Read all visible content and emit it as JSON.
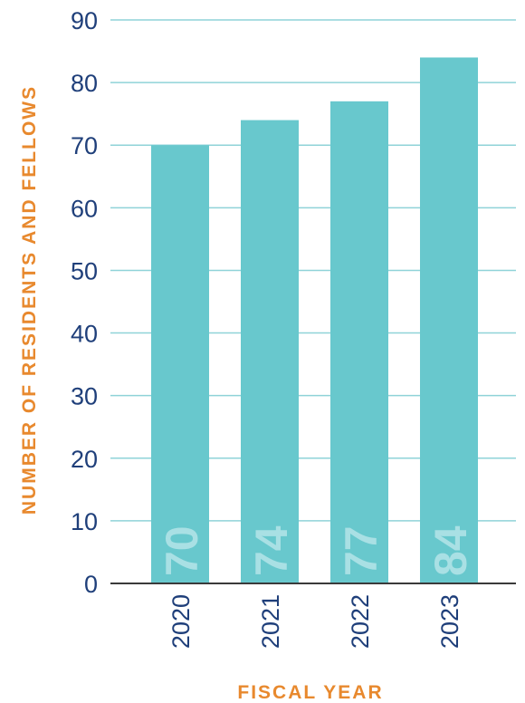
{
  "colors": {
    "bar": "#68c8cd",
    "grid": "#8fd3d8",
    "axis": "#3a3a3a",
    "tick_text": "#1f3f7a",
    "axis_title": "#e8892e",
    "bar_label": "#a9e0e4"
  },
  "chart_data": {
    "type": "bar",
    "categories": [
      "2020",
      "2021",
      "2022",
      "2023"
    ],
    "values": [
      70,
      74,
      77,
      84
    ],
    "value_labels": [
      "70",
      "74",
      "77",
      "84"
    ],
    "title": "",
    "xlabel": "FISCAL YEAR",
    "ylabel": "NUMBER OF RESIDENTS AND FELLOWS",
    "ylim": [
      0,
      90
    ],
    "yticks": [
      0,
      10,
      20,
      30,
      40,
      50,
      60,
      70,
      80,
      90
    ],
    "grid": true,
    "legend": "none"
  }
}
